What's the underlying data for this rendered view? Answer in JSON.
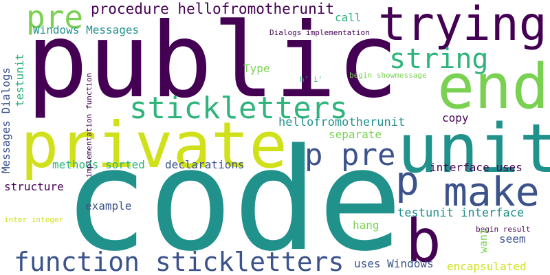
{
  "palette": {
    "dark_purple": "#440154",
    "indigo": "#3b528b",
    "teal": "#21918c",
    "green": "#2fb47c",
    "lime": "#7ad151",
    "yellow": "#d0e11c"
  },
  "words": {
    "code": "code",
    "public": "public",
    "private": "private",
    "unit": "unit",
    "end": "end",
    "trying": "trying",
    "make": "make",
    "function_stickletters": "function stickletters",
    "stickletters": "stickletters",
    "string": "string",
    "pre": "pre",
    "p_pre": "p pre",
    "p": "p",
    "b": "b",
    "procedure_hellofromotherunit": "procedure hellofromotherunit",
    "hellofromotherunit": "hellofromotherunit",
    "windows_messages": "Windows Messages",
    "messages_dialogs": "Messages Dialogs",
    "testunit": "testunit",
    "testunit_interface": "testunit interface",
    "interface_uses": "interface uses",
    "uses_windows": "uses Windows",
    "encapsulated": "encapsulated",
    "declarations": "declarations",
    "methods_sorted": "methods sorted",
    "structure": "structure",
    "example": "example",
    "hang": "hang",
    "want": "want",
    "seem": "seem",
    "separate": "separate",
    "copy": "copy",
    "call": "call",
    "type": "Type",
    "h_i": "h' i'",
    "begin_showmessage": "begin showmessage",
    "dialogs_implementation": "Dialogs implementation",
    "implementation_function": "implementation function",
    "inter_integer": "inter integer",
    "begin_result": "begin result"
  }
}
